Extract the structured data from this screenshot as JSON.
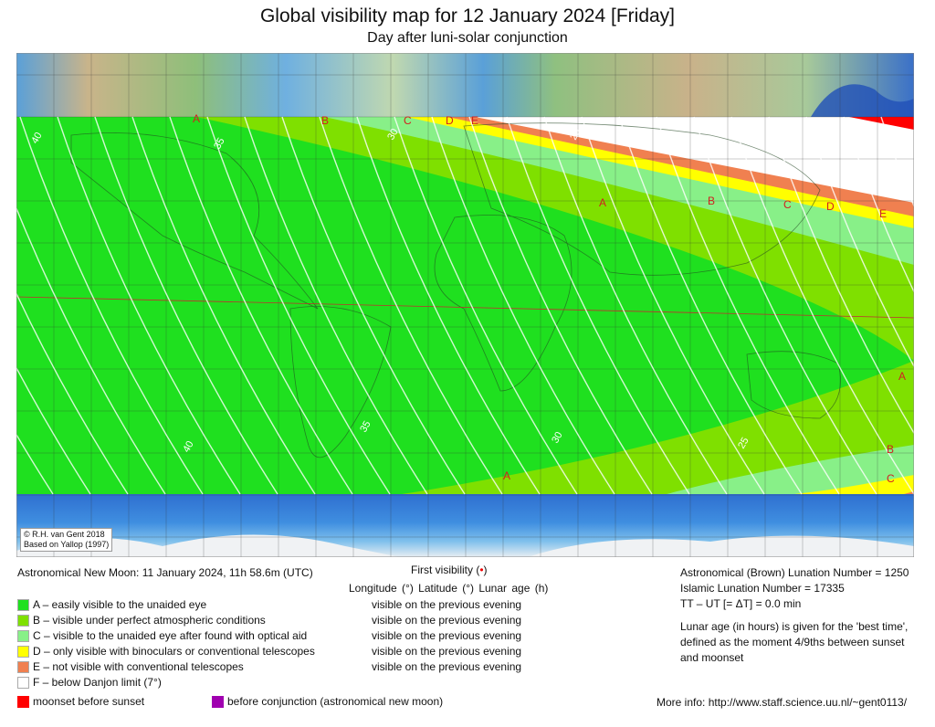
{
  "title": "Global visibility map for 12 January 2024 [Friday]",
  "subtitle": "Day after luni-solar conjunction",
  "credit": {
    "line1": "© R.H. van Gent 2018",
    "line2": "Based on Yallop (1997)"
  },
  "new_moon": "Astronomical New Moon: 11 January 2024, 11h 58.6m (UTC)",
  "first_visibility": {
    "label": "First visibility (",
    "dot": "•",
    "close": ")",
    "columns": "Longitude (°)   Latitude (°)   Lunar age (h)"
  },
  "legend": [
    {
      "label": "A – easily visible to the unaided eye",
      "color": "#1fe01f",
      "first": "visible on the previous evening"
    },
    {
      "label": "B – visible under perfect atmospheric conditions",
      "color": "#7fe000",
      "first": "visible on the previous evening"
    },
    {
      "label": "C – visible to the unaided eye after found with optical aid",
      "color": "#88f088",
      "first": "visible on the previous evening"
    },
    {
      "label": "D – only visible with binoculars or conventional telescopes",
      "color": "#ffff00",
      "first": "visible on the previous evening"
    },
    {
      "label": "E – not visible with conventional telescopes",
      "color": "#f08050",
      "first": "visible on the previous evening"
    },
    {
      "label": "F – below Danjon limit (7°)",
      "color": "#ffffff"
    }
  ],
  "extra_legend": [
    {
      "label": "moonset before sunset",
      "color": "#ff0000"
    },
    {
      "label": "before conjunction (astronomical new moon)",
      "color": "#a000b0"
    }
  ],
  "info": {
    "brown": "Astronomical (Brown) Lunation Number = 1250",
    "islamic": "Islamic Lunation Number = 17335",
    "deltat": "TT – UT [= ΔT] = 0.0 min",
    "note1": "Lunar age (in hours) is given for the 'best time',",
    "note2": "defined as the moment 4/9ths between sunset",
    "note3": "and moonset",
    "more": "More info: http://www.staff.science.uu.nl/~gent0113/"
  },
  "contour_labels": [
    "40",
    "35",
    "30",
    "25",
    "20",
    "40",
    "35",
    "30",
    "25"
  ],
  "band_labels": [
    "A",
    "B",
    "C",
    "D",
    "E",
    "A",
    "B",
    "C",
    "D",
    "E",
    "A",
    "B",
    "C",
    "A"
  ]
}
